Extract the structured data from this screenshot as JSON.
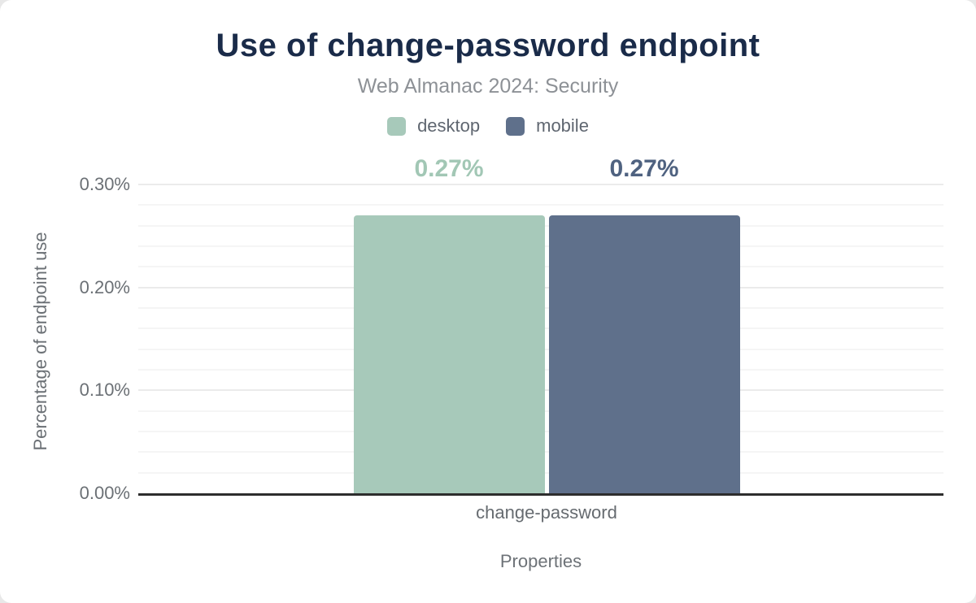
{
  "page": {
    "background": "#ffffff"
  },
  "chart_data": {
    "type": "bar",
    "title": "Use of change-password endpoint",
    "subtitle": "Web Almanac 2024: Security",
    "title_color": "#1a2b49",
    "categories": [
      "change-password"
    ],
    "series": [
      {
        "name": "desktop",
        "values": [
          0.27
        ],
        "labels": [
          "0.27%"
        ],
        "color": "#a7c9ba",
        "label_color": "#a2c7b5"
      },
      {
        "name": "mobile",
        "values": [
          0.27
        ],
        "labels": [
          "0.27%"
        ],
        "color": "#5f708b",
        "label_color": "#4f6280"
      }
    ],
    "xlabel": "Properties",
    "ylabel": "Percentage of endpoint use",
    "ylim": [
      0,
      0.3
    ],
    "yticks": [
      {
        "value": 0.0,
        "label": "0.00%"
      },
      {
        "value": 0.1,
        "label": "0.10%"
      },
      {
        "value": 0.2,
        "label": "0.20%"
      },
      {
        "value": 0.3,
        "label": "0.30%"
      }
    ],
    "grid": {
      "orientation": "horizontal",
      "minor_step": 0.02,
      "major_step": 0.1
    },
    "legend_position": "top",
    "units": "percent"
  }
}
